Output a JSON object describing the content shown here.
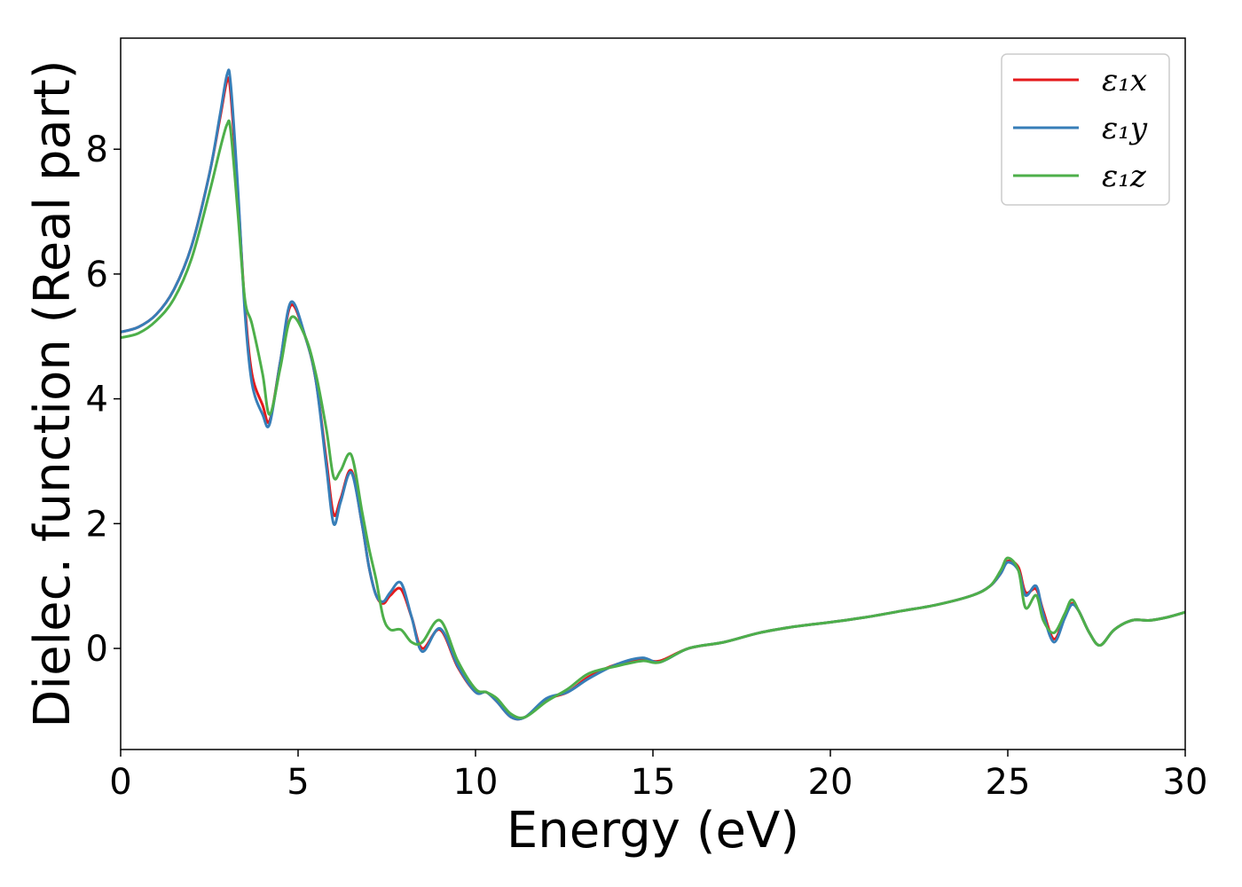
{
  "chart_data": {
    "type": "line",
    "xlabel": "Energy (eV)",
    "ylabel": "Dielec. function (Real part)",
    "xlim": [
      0,
      30
    ],
    "ylim": [
      -1.62,
      9.78
    ],
    "xticks": [
      0,
      5,
      10,
      15,
      20,
      25,
      30
    ],
    "yticks": [
      0,
      2,
      4,
      6,
      8
    ],
    "grid": false,
    "legend_position": "top-right",
    "series": [
      {
        "name": "ε₁x",
        "color": "#e41a1c",
        "x": [
          0,
          0.5,
          1,
          1.5,
          2,
          2.5,
          2.8,
          3.0,
          3.1,
          3.3,
          3.5,
          3.7,
          4.0,
          4.2,
          4.5,
          4.8,
          5.2,
          5.5,
          5.8,
          6.0,
          6.2,
          6.5,
          6.8,
          7.0,
          7.2,
          7.4,
          7.6,
          7.9,
          8.2,
          8.5,
          9.0,
          9.5,
          10.0,
          10.3,
          10.6,
          11.0,
          11.4,
          12.0,
          12.6,
          13.2,
          14.0,
          14.7,
          15.2,
          16.0,
          17.0,
          18.0,
          19.0,
          20.0,
          21.0,
          22.0,
          23.0,
          24.0,
          24.5,
          24.8,
          25.0,
          25.3,
          25.5,
          25.8,
          26.0,
          26.3,
          26.6,
          26.8,
          27.0,
          27.3,
          27.6,
          28.0,
          28.5,
          29.0,
          29.5,
          30.0
        ],
        "values": [
          5.07,
          5.15,
          5.35,
          5.75,
          6.45,
          7.6,
          8.5,
          9.1,
          8.9,
          7.3,
          5.5,
          4.4,
          3.9,
          3.65,
          4.6,
          5.5,
          5.0,
          4.3,
          3.0,
          2.15,
          2.4,
          2.85,
          2.0,
          1.3,
          0.85,
          0.72,
          0.85,
          0.95,
          0.5,
          0.0,
          0.3,
          -0.3,
          -0.7,
          -0.7,
          -0.85,
          -1.1,
          -1.1,
          -0.82,
          -0.7,
          -0.45,
          -0.25,
          -0.18,
          -0.2,
          0.0,
          0.1,
          0.25,
          0.35,
          0.42,
          0.5,
          0.6,
          0.7,
          0.85,
          1.0,
          1.2,
          1.4,
          1.3,
          0.9,
          0.95,
          0.6,
          0.15,
          0.5,
          0.72,
          0.6,
          0.25,
          0.05,
          0.3,
          0.45,
          0.45,
          0.5,
          0.58
        ]
      },
      {
        "name": "ε₁y",
        "color": "#377eb8",
        "x": [
          0,
          0.5,
          1,
          1.5,
          2,
          2.5,
          2.8,
          3.0,
          3.1,
          3.3,
          3.5,
          3.7,
          4.0,
          4.2,
          4.5,
          4.8,
          5.2,
          5.5,
          5.8,
          6.0,
          6.2,
          6.5,
          6.8,
          7.0,
          7.2,
          7.4,
          7.6,
          7.9,
          8.2,
          8.5,
          9.0,
          9.5,
          10.0,
          10.3,
          10.6,
          11.0,
          11.4,
          12.0,
          12.6,
          13.2,
          14.0,
          14.7,
          15.2,
          16.0,
          17.0,
          18.0,
          19.0,
          20.0,
          21.0,
          22.0,
          23.0,
          24.0,
          24.5,
          24.8,
          25.0,
          25.3,
          25.5,
          25.8,
          26.0,
          26.3,
          26.6,
          26.8,
          27.0,
          27.3,
          27.6,
          28.0,
          28.5,
          29.0,
          29.5,
          30.0
        ],
        "values": [
          5.07,
          5.15,
          5.35,
          5.75,
          6.45,
          7.6,
          8.55,
          9.2,
          9.05,
          7.4,
          5.4,
          4.25,
          3.75,
          3.6,
          4.6,
          5.55,
          5.0,
          4.3,
          2.9,
          2.0,
          2.35,
          2.82,
          2.0,
          1.3,
          0.85,
          0.75,
          0.9,
          1.05,
          0.5,
          -0.05,
          0.32,
          -0.28,
          -0.7,
          -0.7,
          -0.85,
          -1.1,
          -1.1,
          -0.8,
          -0.7,
          -0.48,
          -0.25,
          -0.15,
          -0.22,
          0.0,
          0.1,
          0.25,
          0.35,
          0.42,
          0.5,
          0.6,
          0.7,
          0.85,
          1.0,
          1.2,
          1.38,
          1.25,
          0.85,
          1.0,
          0.55,
          0.1,
          0.48,
          0.7,
          0.6,
          0.25,
          0.05,
          0.3,
          0.45,
          0.45,
          0.5,
          0.58
        ]
      },
      {
        "name": "ε₁z",
        "color": "#4daf4a",
        "x": [
          0,
          0.5,
          1,
          1.5,
          2,
          2.5,
          2.8,
          3.0,
          3.1,
          3.3,
          3.5,
          3.7,
          4.0,
          4.2,
          4.5,
          4.8,
          5.2,
          5.5,
          5.8,
          6.0,
          6.2,
          6.5,
          6.8,
          7.0,
          7.2,
          7.4,
          7.6,
          7.9,
          8.2,
          8.5,
          9.0,
          9.5,
          10.0,
          10.3,
          10.6,
          11.0,
          11.4,
          12.0,
          12.6,
          13.2,
          14.0,
          14.7,
          15.2,
          16.0,
          17.0,
          18.0,
          19.0,
          20.0,
          21.0,
          22.0,
          23.0,
          24.0,
          24.5,
          24.8,
          25.0,
          25.3,
          25.5,
          25.8,
          26.0,
          26.3,
          26.6,
          26.8,
          27.0,
          27.3,
          27.6,
          28.0,
          28.5,
          29.0,
          29.5,
          30.0
        ],
        "values": [
          4.98,
          5.05,
          5.25,
          5.6,
          6.25,
          7.3,
          8.0,
          8.4,
          8.3,
          7.0,
          5.6,
          5.2,
          4.4,
          3.75,
          4.5,
          5.3,
          5.0,
          4.4,
          3.5,
          2.75,
          2.85,
          3.1,
          2.2,
          1.6,
          1.1,
          0.5,
          0.3,
          0.3,
          0.1,
          0.1,
          0.45,
          -0.2,
          -0.65,
          -0.7,
          -0.8,
          -1.05,
          -1.1,
          -0.85,
          -0.65,
          -0.4,
          -0.28,
          -0.2,
          -0.22,
          0.0,
          0.1,
          0.25,
          0.35,
          0.42,
          0.5,
          0.6,
          0.7,
          0.85,
          1.0,
          1.25,
          1.45,
          1.25,
          0.65,
          0.85,
          0.45,
          0.25,
          0.55,
          0.78,
          0.6,
          0.25,
          0.05,
          0.3,
          0.45,
          0.45,
          0.5,
          0.58
        ]
      }
    ]
  }
}
